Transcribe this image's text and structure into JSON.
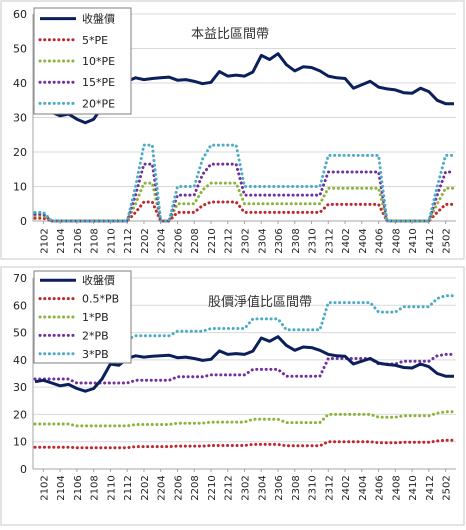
{
  "chart_data": [
    {
      "type": "line",
      "title": "本益比區間帶",
      "ylim": [
        0,
        60
      ],
      "yticks": [
        0,
        10,
        20,
        30,
        40,
        50,
        60
      ],
      "grid": true,
      "legend_placement": "top-left",
      "x": [
        "2101",
        "2102",
        "2103",
        "2104",
        "2105",
        "2106",
        "2107",
        "2108",
        "2109",
        "2110",
        "2111",
        "2112",
        "2201",
        "2202",
        "2203",
        "2204",
        "2205",
        "2206",
        "2207",
        "2208",
        "2209",
        "2210",
        "2211",
        "2212",
        "2301",
        "2302",
        "2303",
        "2304",
        "2305",
        "2306",
        "2307",
        "2308",
        "2309",
        "2310",
        "2311",
        "2312",
        "2401",
        "2402",
        "2403",
        "2404",
        "2405",
        "2406",
        "2407",
        "2408",
        "2409",
        "2410",
        "2411",
        "2412",
        "2501",
        "2502",
        "2503"
      ],
      "xtick_labels": [
        "2102",
        "2104",
        "2106",
        "2108",
        "2110",
        "2112",
        "2202",
        "2204",
        "2206",
        "2208",
        "2210",
        "2212",
        "2302",
        "2304",
        "2306",
        "2308",
        "2310",
        "2312",
        "2402",
        "2404",
        "2406",
        "2408",
        "2410",
        "2412",
        "2502"
      ],
      "series": [
        {
          "name": "收盤價",
          "color": "#0b1f5c",
          "style": "solid",
          "values": [
            32,
            32.5,
            31.5,
            30.5,
            31,
            29.5,
            28.5,
            29.5,
            33,
            38.5,
            38,
            40.5,
            41.5,
            41,
            41.3,
            41.5,
            41.7,
            40.8,
            41,
            40.5,
            39.8,
            40.2,
            43.3,
            42,
            42.3,
            42,
            43.2,
            48,
            46.8,
            48.5,
            45.3,
            43.5,
            44.7,
            44.5,
            43.5,
            42,
            41.5,
            41.3,
            38.5,
            39.5,
            40.5,
            38.8,
            38.3,
            38,
            37.2,
            37,
            38.5,
            37.5,
            35,
            34,
            34
          ]
        },
        {
          "name": "5*PE",
          "color": "#c0262d",
          "style": "dotted",
          "values": [
            0.8,
            0.8,
            0,
            0,
            0,
            0,
            0,
            0,
            0,
            0,
            0,
            0,
            2.5,
            5.5,
            5.5,
            0,
            0,
            2.5,
            2.5,
            2.5,
            4.5,
            5.5,
            5.5,
            5.5,
            5.5,
            2.5,
            2.5,
            2.5,
            2.5,
            2.5,
            2.5,
            2.5,
            2.5,
            2.5,
            2.5,
            4.8,
            4.8,
            4.8,
            4.8,
            4.8,
            4.8,
            4.8,
            0,
            0,
            0,
            0,
            0,
            0,
            2.5,
            4.8,
            4.8
          ]
        },
        {
          "name": "10*PE",
          "color": "#8db33b",
          "style": "dotted",
          "values": [
            1.5,
            1.5,
            0,
            0,
            0,
            0,
            0,
            0,
            0,
            0,
            0,
            0,
            5,
            11,
            11,
            0,
            0,
            5,
            5,
            5,
            9,
            11,
            11,
            11,
            11,
            5,
            5,
            5,
            5,
            5,
            5,
            5,
            5,
            5,
            5,
            9.5,
            9.5,
            9.5,
            9.5,
            9.5,
            9.5,
            9.5,
            0,
            0,
            0,
            0,
            0,
            0,
            5,
            9.5,
            9.5
          ]
        },
        {
          "name": "15*PE",
          "color": "#7030a0",
          "style": "dotted",
          "values": [
            2,
            2,
            0,
            0,
            0,
            0,
            0,
            0,
            0,
            0,
            0,
            0,
            7.5,
            16.5,
            16.5,
            0,
            0,
            7.5,
            7.5,
            7.5,
            13.5,
            16.5,
            16.5,
            16.5,
            16.5,
            7.5,
            7.5,
            7.5,
            7.5,
            7.5,
            7.5,
            7.5,
            7.5,
            7.5,
            7.5,
            14.2,
            14.2,
            14.2,
            14.2,
            14.2,
            14.2,
            14.2,
            0,
            0,
            0,
            0,
            0,
            0,
            7.5,
            14.2,
            14.2
          ]
        },
        {
          "name": "20*PE",
          "color": "#4bacc6",
          "style": "dotted",
          "values": [
            2.5,
            2.5,
            0,
            0,
            0,
            0,
            0,
            0,
            0,
            0,
            0,
            0,
            10,
            22,
            22,
            0,
            0,
            10,
            10,
            10,
            18,
            22,
            22,
            22,
            22,
            10,
            10,
            10,
            10,
            10,
            10,
            10,
            10,
            10,
            10,
            19,
            19,
            19,
            19,
            19,
            19,
            19,
            0,
            0,
            0,
            0,
            0,
            0,
            10,
            19,
            19
          ]
        }
      ]
    },
    {
      "type": "line",
      "title": "股價淨值比區間帶",
      "ylim": [
        0,
        70
      ],
      "yticks": [
        0,
        10,
        20,
        30,
        40,
        50,
        60,
        70
      ],
      "grid": true,
      "legend_placement": "top-left",
      "x": [
        "2101",
        "2102",
        "2103",
        "2104",
        "2105",
        "2106",
        "2107",
        "2108",
        "2109",
        "2110",
        "2111",
        "2112",
        "2201",
        "2202",
        "2203",
        "2204",
        "2205",
        "2206",
        "2207",
        "2208",
        "2209",
        "2210",
        "2211",
        "2212",
        "2301",
        "2302",
        "2303",
        "2304",
        "2305",
        "2306",
        "2307",
        "2308",
        "2309",
        "2310",
        "2311",
        "2312",
        "2401",
        "2402",
        "2403",
        "2404",
        "2405",
        "2406",
        "2407",
        "2408",
        "2409",
        "2410",
        "2411",
        "2412",
        "2501",
        "2502",
        "2503"
      ],
      "xtick_labels": [
        "2102",
        "2104",
        "2106",
        "2108",
        "2110",
        "2112",
        "2202",
        "2204",
        "2206",
        "2208",
        "2210",
        "2212",
        "2302",
        "2304",
        "2306",
        "2308",
        "2310",
        "2312",
        "2402",
        "2404",
        "2406",
        "2408",
        "2410",
        "2412",
        "2502"
      ],
      "series": [
        {
          "name": "收盤價",
          "color": "#0b1f5c",
          "style": "solid",
          "values": [
            32,
            32.5,
            31.5,
            30.5,
            31,
            29.5,
            28.5,
            29.5,
            33,
            38.5,
            38,
            40.5,
            41.5,
            41,
            41.3,
            41.5,
            41.7,
            40.8,
            41,
            40.5,
            39.8,
            40.2,
            43.3,
            42,
            42.3,
            42,
            43.2,
            48,
            46.8,
            48.5,
            45.3,
            43.5,
            44.7,
            44.5,
            43.5,
            42,
            41.5,
            41.3,
            38.5,
            39.5,
            40.5,
            38.8,
            38.3,
            38,
            37.2,
            37,
            38.5,
            37.5,
            35,
            34,
            34
          ]
        },
        {
          "name": "0.5*PB",
          "color": "#c0262d",
          "style": "dotted",
          "values": [
            8,
            8,
            8,
            8,
            8,
            7.8,
            7.8,
            7.8,
            7.8,
            7.8,
            7.8,
            7.8,
            8.2,
            8.2,
            8.2,
            8.2,
            8.2,
            8.4,
            8.4,
            8.4,
            8.4,
            8.6,
            8.6,
            8.6,
            8.6,
            8.6,
            9,
            9,
            9,
            9,
            8.5,
            8.5,
            8.5,
            8.5,
            8.5,
            10,
            10,
            10,
            10,
            10,
            10,
            9.6,
            9.6,
            9.6,
            9.8,
            9.8,
            9.8,
            9.8,
            10.3,
            10.5,
            10.5
          ]
        },
        {
          "name": "1*PB",
          "color": "#8db33b",
          "style": "dotted",
          "values": [
            16.5,
            16.5,
            16.5,
            16.5,
            16.5,
            15.8,
            15.8,
            15.8,
            15.8,
            15.8,
            15.8,
            15.8,
            16.3,
            16.3,
            16.3,
            16.3,
            16.3,
            16.8,
            16.8,
            16.8,
            16.8,
            17.2,
            17.2,
            17.2,
            17.2,
            17.2,
            18.2,
            18.2,
            18.2,
            18.2,
            17,
            17,
            17,
            17,
            17,
            20,
            20,
            20,
            20,
            20,
            20,
            19,
            19,
            19,
            19.5,
            19.5,
            19.5,
            19.5,
            20.5,
            21,
            21
          ]
        },
        {
          "name": "2*PB",
          "color": "#7030a0",
          "style": "dotted",
          "values": [
            33,
            33,
            33,
            33,
            33,
            31.5,
            31.5,
            31.5,
            31.5,
            31.5,
            31.5,
            31.5,
            32.5,
            32.5,
            32.5,
            32.5,
            32.5,
            33.8,
            33.8,
            33.8,
            33.8,
            34.5,
            34.5,
            34.5,
            34.5,
            34.5,
            36.5,
            36.5,
            36.5,
            36.5,
            34,
            34,
            34,
            34,
            34,
            40.5,
            40.5,
            40.5,
            40.5,
            40.5,
            40.5,
            38.5,
            38.5,
            38.5,
            39.5,
            39.5,
            39.5,
            39.5,
            41.5,
            42,
            42
          ]
        },
        {
          "name": "3*PB",
          "color": "#4bacc6",
          "style": "dotted",
          "values": [
            49.5,
            49.5,
            49.5,
            49.5,
            49.5,
            47.5,
            47.5,
            47.5,
            47.5,
            47.5,
            47.5,
            47.5,
            48.8,
            48.8,
            48.8,
            48.8,
            48.8,
            50.5,
            50.5,
            50.5,
            50.5,
            51.5,
            51.5,
            51.5,
            51.5,
            51.5,
            55,
            55,
            55,
            55,
            51,
            51,
            51,
            51,
            51,
            61,
            61,
            61,
            61,
            61,
            61,
            57.5,
            57.5,
            57.5,
            59.5,
            59.5,
            59.5,
            59.5,
            62.5,
            63.5,
            63.5
          ]
        }
      ]
    }
  ]
}
